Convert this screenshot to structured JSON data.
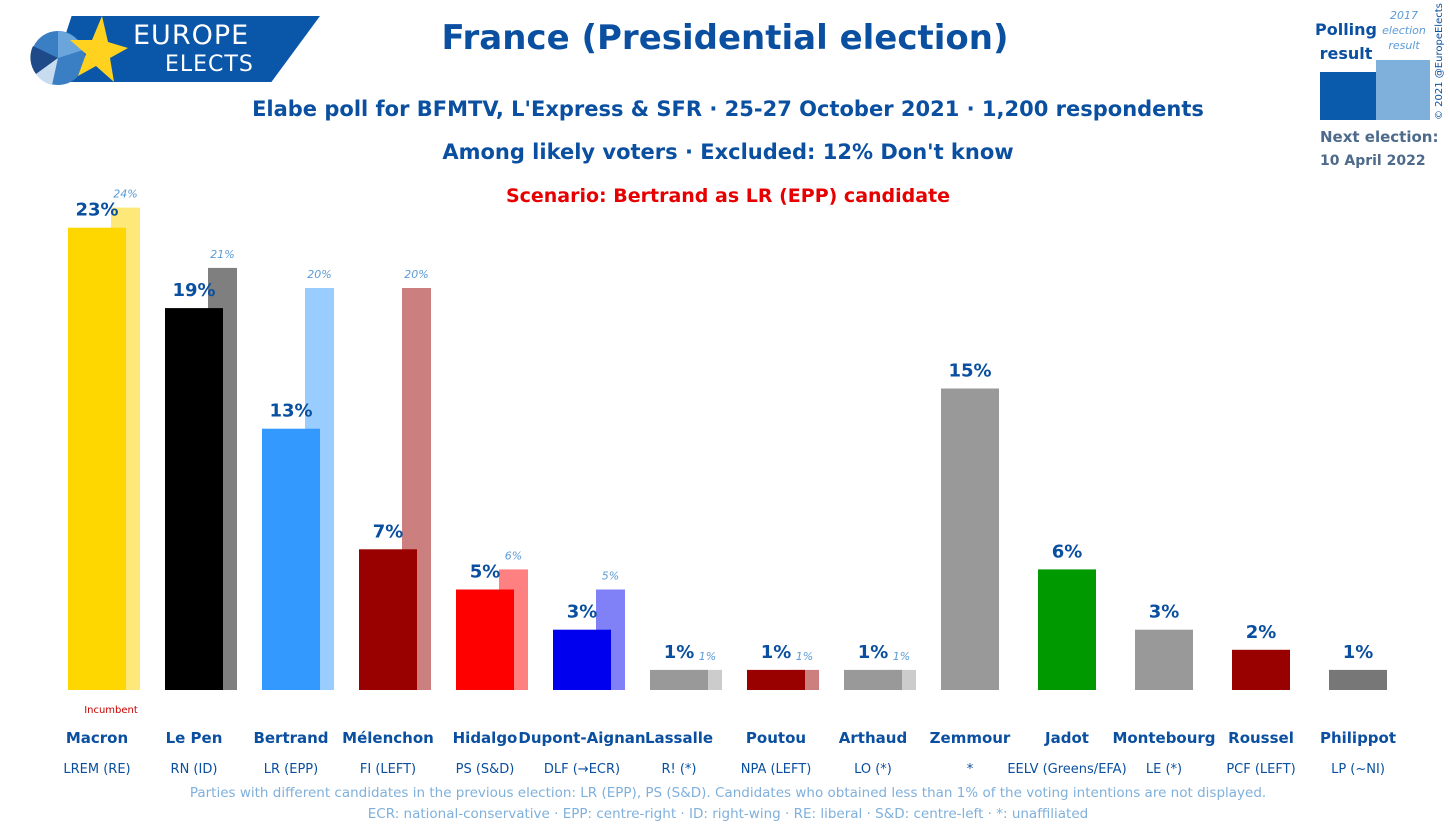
{
  "logo": {
    "line1": "EUROPE",
    "line2": "ELECTS"
  },
  "title": "France (Presidential election)",
  "subtitle": "Elabe poll for BFMTV, L'Express & SFR · 25-27 October 2021 · 1,200 respondents",
  "subtitle2": "Among likely voters · Excluded: 12% Don't know",
  "scenario": "Scenario: Bertrand as LR (EPP) candidate",
  "legend": {
    "poll": "Polling result",
    "previous": "2017 election result",
    "poll_color": "#0a5bab",
    "previous_color": "#7fb0dc"
  },
  "copyright": "© 2021 @EuropeElects",
  "next_election": {
    "label": "Next election:",
    "date": "10 April 2022"
  },
  "incumbent_note": "Incumbent",
  "footnote1": "Parties with different candidates in the previous election: LR (EPP), PS (S&D). Candidates who obtained less than 1% of the voting intentions are not displayed.",
  "footnote2": "ECR: national-conservative · EPP: centre-right · ID: right-wing · RE: liberal · S&D: centre-left · *: unaffiliated",
  "chart_data": {
    "type": "bar",
    "categories": [
      "Macron",
      "Le Pen",
      "Bertrand",
      "Mélenchon",
      "Hidalgo",
      "Dupont-Aignan",
      "Lassalle",
      "Poutou",
      "Arthaud",
      "Zemmour",
      "Jadot",
      "Montebourg",
      "Roussel",
      "Philippot"
    ],
    "parties": [
      "LREM (RE)",
      "RN (ID)",
      "LR (EPP)",
      "FI (LEFT)",
      "PS (S&D)",
      "DLF (→ECR)",
      "R! (*)",
      "NPA (LEFT)",
      "LO (*)",
      "*",
      "EELV (Greens/EFA)",
      "LE (*)",
      "PCF (LEFT)",
      "LP (~NI)"
    ],
    "series": [
      {
        "name": "Polling result",
        "values": [
          23,
          19,
          13,
          7,
          5,
          3,
          1,
          1,
          1,
          15,
          6,
          3,
          2,
          1
        ],
        "labels": [
          "23%",
          "19%",
          "13%",
          "7%",
          "5%",
          "3%",
          "1%",
          "1%",
          "1%",
          "15%",
          "6%",
          "3%",
          "2%",
          "1%"
        ],
        "colors": [
          "#ffd700",
          "#000000",
          "#3399ff",
          "#990000",
          "#ff0000",
          "#0000ee",
          "#999999",
          "#990000",
          "#999999",
          "#999999",
          "#009900",
          "#999999",
          "#990000",
          "#777777"
        ]
      },
      {
        "name": "2017 election result",
        "values": [
          24,
          21,
          20,
          20,
          6,
          5,
          1,
          1,
          1,
          null,
          null,
          null,
          null,
          null
        ],
        "labels": [
          "24%",
          "21%",
          "20%",
          "20%",
          "6%",
          "5%",
          "1%",
          "1%",
          "1%",
          null,
          null,
          null,
          null,
          null
        ],
        "colors": [
          "#ffe87a",
          "#7f7f7f",
          "#99ccff",
          "#cc7f7f",
          "#ff8080",
          "#8080f7",
          "#cccccc",
          "#cc7f7f",
          "#cccccc",
          null,
          null,
          null,
          null,
          null
        ]
      }
    ],
    "ylim": [
      0,
      24
    ]
  }
}
